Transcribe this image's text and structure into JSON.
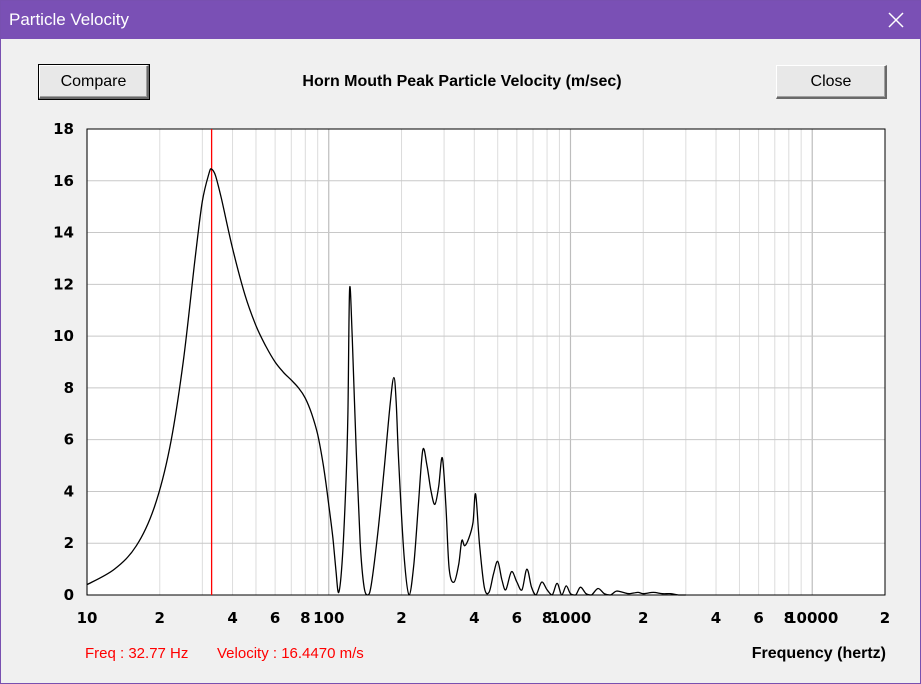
{
  "window": {
    "title": "Particle Velocity"
  },
  "toolbar": {
    "compare_label": "Compare",
    "close_label": "Close"
  },
  "readout": {
    "freq": "Freq : 32.77 Hz",
    "velocity": "Velocity : 16.4470 m/s"
  },
  "colors": {
    "titlebar": "#7a50b5",
    "marker": "#ff0000",
    "curve": "#000000",
    "grid": "#c8c8c8"
  },
  "chart_data": {
    "type": "line",
    "title": "Horn Mouth Peak Particle Velocity (m/sec)",
    "xlabel": "Frequency (hertz)",
    "ylabel": "",
    "xscale": "log",
    "xlim": [
      10,
      20000
    ],
    "ylim": [
      0,
      18
    ],
    "grid": true,
    "y_ticks": [
      0,
      2,
      4,
      6,
      8,
      10,
      12,
      14,
      16,
      18
    ],
    "x_ticks": [
      {
        "value": 10,
        "label": "10"
      },
      {
        "value": 20,
        "label": "2"
      },
      {
        "value": 40,
        "label": "4"
      },
      {
        "value": 60,
        "label": "6"
      },
      {
        "value": 80,
        "label": "8"
      },
      {
        "value": 100,
        "label": "100"
      },
      {
        "value": 200,
        "label": "2"
      },
      {
        "value": 400,
        "label": "4"
      },
      {
        "value": 600,
        "label": "6"
      },
      {
        "value": 800,
        "label": "8"
      },
      {
        "value": 1000,
        "label": "1000"
      },
      {
        "value": 2000,
        "label": "2"
      },
      {
        "value": 4000,
        "label": "4"
      },
      {
        "value": 6000,
        "label": "6"
      },
      {
        "value": 8000,
        "label": "8"
      },
      {
        "value": 10000,
        "label": "10000"
      },
      {
        "value": 20000,
        "label": "2"
      }
    ],
    "marker_x": 32.77,
    "series": [
      {
        "x": [
          10,
          13,
          16,
          19,
          22,
          25,
          28,
          30,
          32,
          32.77,
          34,
          36,
          40,
          45,
          50,
          55,
          60,
          65,
          70,
          75,
          80,
          85,
          90,
          95,
          100,
          104,
          107,
          110,
          114,
          118,
          120,
          122,
          125,
          130,
          135,
          140,
          145,
          150,
          160,
          170,
          180,
          186,
          190,
          195,
          205,
          215,
          225,
          235,
          245,
          255,
          265,
          275,
          285,
          295,
          305,
          315,
          330,
          345,
          355,
          365,
          380,
          395,
          405,
          420,
          440,
          460,
          480,
          500,
          520,
          540,
          570,
          600,
          630,
          660,
          690,
          720,
          760,
          800,
          840,
          880,
          920,
          960,
          1000,
          1050,
          1100,
          1160,
          1220,
          1300,
          1380,
          1460,
          1550,
          1650,
          1750,
          1900,
          2000,
          2200,
          2400,
          2600,
          2800,
          3000
        ],
        "y": [
          0.4,
          1.0,
          1.9,
          3.4,
          5.7,
          9.0,
          13.0,
          15.2,
          16.3,
          16.45,
          16.2,
          15.3,
          13.4,
          11.6,
          10.4,
          9.6,
          9.0,
          8.6,
          8.3,
          8.0,
          7.6,
          7.0,
          6.2,
          5.0,
          3.5,
          2.2,
          1.0,
          0.1,
          1.5,
          4.5,
          7.0,
          11.8,
          10.0,
          5.5,
          2.0,
          0.3,
          0.0,
          0.4,
          2.5,
          5.0,
          7.5,
          8.4,
          7.5,
          5.0,
          1.5,
          0.0,
          1.2,
          3.5,
          5.6,
          5.0,
          4.0,
          3.5,
          4.2,
          5.3,
          3.5,
          1.0,
          0.5,
          1.2,
          2.1,
          1.9,
          2.2,
          2.8,
          3.9,
          2.0,
          0.3,
          0.1,
          0.8,
          1.3,
          0.6,
          0.2,
          0.9,
          0.5,
          0.2,
          1.0,
          0.3,
          0.0,
          0.5,
          0.2,
          0.0,
          0.45,
          0.0,
          0.35,
          0.05,
          0.0,
          0.3,
          0.05,
          0.0,
          0.25,
          0.05,
          0.0,
          0.15,
          0.1,
          0.05,
          0.1,
          0.05,
          0.1,
          0.05,
          0.05,
          0.0,
          0.0
        ]
      }
    ]
  }
}
